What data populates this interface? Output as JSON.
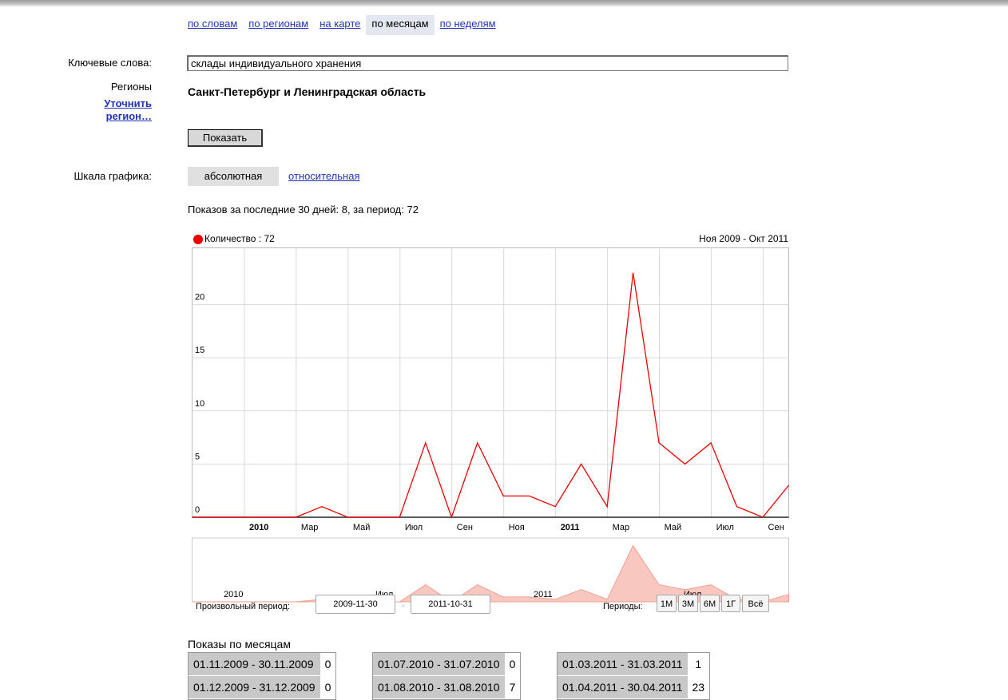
{
  "tabs": [
    {
      "label": "по словам",
      "active": false
    },
    {
      "label": "по регионам",
      "active": false
    },
    {
      "label": "на карте",
      "active": false
    },
    {
      "label": "по месяцам",
      "active": true
    },
    {
      "label": "по неделям",
      "active": false
    }
  ],
  "form": {
    "keywords_label": "Ключевые слова:",
    "keywords_value": "склады индивидуального хранения",
    "regions_label": "Регионы",
    "refine_link": "Уточнить регион…",
    "region_name": "Санкт-Петербург и Ленинградская область",
    "show_button": "Показать",
    "scale_label": "Шкала графика:",
    "scale_absolute": "абсолютная",
    "scale_relative": "относительная"
  },
  "stats_text": "Показов за последние 30 дней: 8, за период: 72",
  "chart_data": {
    "type": "line",
    "legend": "Количество : 72",
    "range_label": "Ноя 2009 - Окт 2011",
    "y_ticks": [
      0,
      5,
      10,
      15,
      20
    ],
    "ylim": [
      0,
      23.5
    ],
    "x_tick_labels": [
      "2010",
      "Мар",
      "Май",
      "Июл",
      "Сен",
      "Ноя",
      "2011",
      "Мар",
      "Май",
      "Июл",
      "Сен"
    ],
    "x_tick_bold": [
      true,
      false,
      false,
      false,
      false,
      false,
      true,
      false,
      false,
      false,
      false
    ],
    "x": [
      "2009-11",
      "2009-12",
      "2010-01",
      "2010-02",
      "2010-03",
      "2010-04",
      "2010-05",
      "2010-06",
      "2010-07",
      "2010-08",
      "2010-09",
      "2010-10",
      "2010-11",
      "2010-12",
      "2011-01",
      "2011-02",
      "2011-03",
      "2011-04",
      "2011-05",
      "2011-06",
      "2011-07",
      "2011-08",
      "2011-09",
      "2011-10"
    ],
    "series": [
      {
        "values": [
          0,
          0,
          0,
          0,
          0,
          1,
          0,
          0,
          0,
          7,
          0,
          7,
          2,
          2,
          1,
          5,
          1,
          23,
          7,
          5,
          7,
          1,
          0,
          3
        ],
        "color": "#ee0000"
      }
    ],
    "overview_labels": [
      "2010",
      "Июл",
      "2011",
      "Июл"
    ],
    "grid": true
  },
  "period": {
    "label": "Произвольный период:",
    "from": "2009-11-30",
    "to": "2011-10-31",
    "dash": "-",
    "periods_label": "Периоды:",
    "buttons": [
      "1М",
      "3М",
      "6М",
      "1Г",
      "Всё"
    ]
  },
  "monthly": {
    "title": "Показы по месяцам",
    "rows": [
      {
        "period": "01.11.2009 - 30.11.2009",
        "value": "0"
      },
      {
        "period": "01.07.2010 - 31.07.2010",
        "value": "0"
      },
      {
        "period": "01.03.2011 - 31.03.2011",
        "value": "1"
      },
      {
        "period": "01.12.2009 - 31.12.2009",
        "value": "0"
      },
      {
        "period": "01.08.2010 - 31.08.2010",
        "value": "7"
      },
      {
        "period": "01.04.2011 - 30.04.2011",
        "value": "23"
      }
    ]
  }
}
